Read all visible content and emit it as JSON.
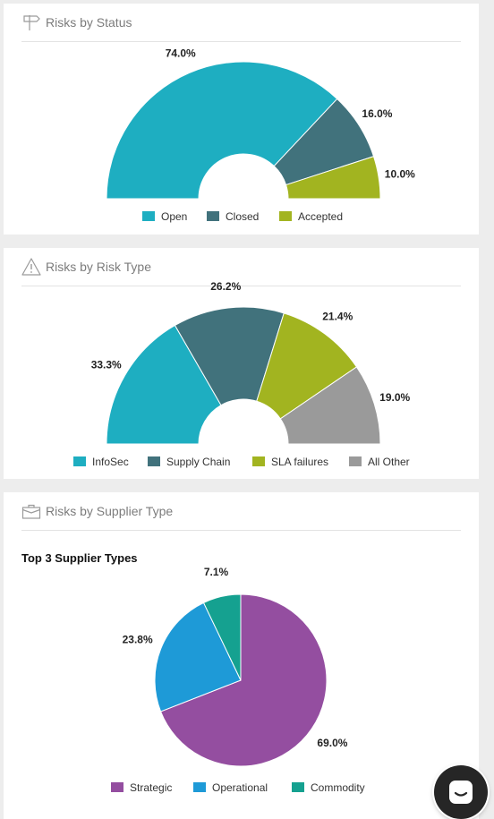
{
  "cards": [
    {
      "title": "Risks by Status",
      "icon": "signpost-icon"
    },
    {
      "title": "Risks by Risk Type",
      "icon": "warning-icon"
    },
    {
      "title": "Risks by Supplier Type",
      "icon": "briefcase-icon",
      "subtitle": "Top 3 Supplier Types"
    }
  ],
  "chat": {
    "icon": "chat-icon"
  },
  "chart_data": [
    {
      "type": "pie",
      "variant": "semi-donut",
      "title": "Risks by Status",
      "categories": [
        "Open",
        "Closed",
        "Accepted"
      ],
      "values": [
        74.0,
        16.0,
        10.0
      ],
      "labels": [
        "74.0%",
        "16.0%",
        "10.0%"
      ],
      "colors": [
        "#1eaec1",
        "#41727c",
        "#a2b420"
      ],
      "legend_position": "bottom"
    },
    {
      "type": "pie",
      "variant": "semi-donut",
      "title": "Risks by Risk Type",
      "categories": [
        "InfoSec",
        "Supply Chain",
        "SLA failures",
        "All Other"
      ],
      "values": [
        33.3,
        26.2,
        21.4,
        19.0
      ],
      "labels": [
        "33.3%",
        "26.2%",
        "21.4%",
        "19.0%"
      ],
      "colors": [
        "#1eaec1",
        "#41727c",
        "#a2b420",
        "#9a9a9a"
      ],
      "legend_position": "bottom"
    },
    {
      "type": "pie",
      "title": "Top 3 Supplier Types",
      "categories": [
        "Strategic",
        "Operational",
        "Commodity"
      ],
      "values": [
        69.0,
        23.8,
        7.1
      ],
      "labels": [
        "69.0%",
        "23.8%",
        "7.1%"
      ],
      "colors": [
        "#944ea0",
        "#1e9ad7",
        "#15a190"
      ],
      "legend_position": "bottom"
    }
  ]
}
